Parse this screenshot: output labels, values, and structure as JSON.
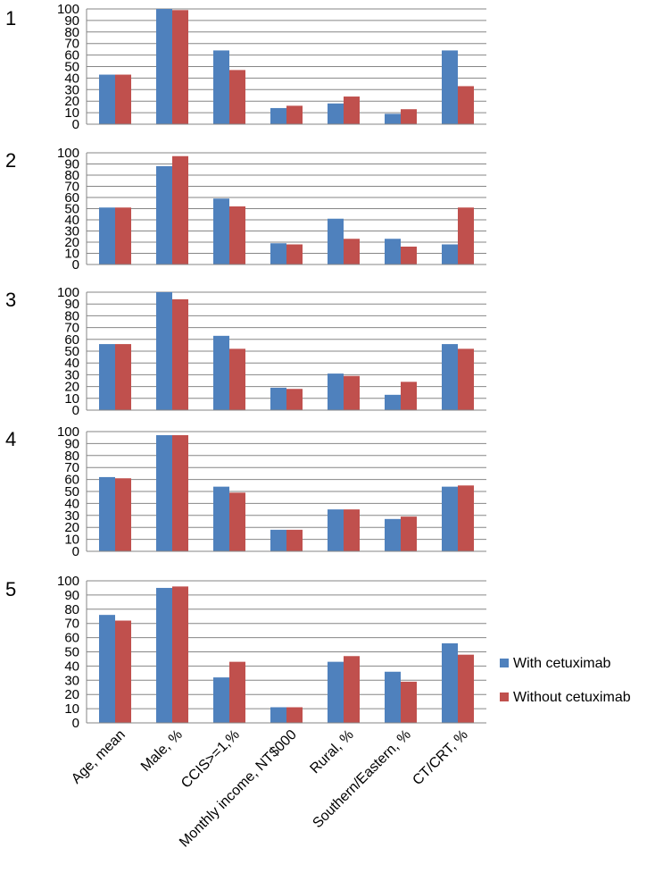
{
  "chart_data": {
    "type": "bar",
    "categories": [
      "Age, mean",
      "Male, %",
      "CCIS>=1,%",
      "Monthly income, NT$000",
      "Rural, %",
      "Southern/Eastern, %",
      "CT/CRT, %"
    ],
    "yticks": [
      0,
      10,
      20,
      30,
      40,
      50,
      60,
      70,
      80,
      90,
      100
    ],
    "ylim": [
      0,
      100
    ],
    "grid": true,
    "colors": {
      "with": "#4f81bd",
      "without": "#c0504d",
      "grid": "#868686"
    },
    "legend": {
      "position": "right",
      "entries": [
        "With cetuximab",
        "Without cetuximab"
      ]
    },
    "panels": [
      {
        "label": "1",
        "series": [
          {
            "name": "With cetuximab",
            "values": [
              43,
              100,
              64,
              14,
              18,
              9,
              64
            ]
          },
          {
            "name": "Without cetuximab",
            "values": [
              43,
              99,
              47,
              16,
              24,
              13,
              33
            ]
          }
        ]
      },
      {
        "label": "2",
        "series": [
          {
            "name": "With cetuximab",
            "values": [
              51,
              88,
              59,
              19,
              41,
              23,
              18
            ]
          },
          {
            "name": "Without cetuximab",
            "values": [
              51,
              97,
              52,
              18,
              23,
              16,
              51
            ]
          }
        ]
      },
      {
        "label": "3",
        "series": [
          {
            "name": "With cetuximab",
            "values": [
              56,
              100,
              63,
              19,
              31,
              13,
              56
            ]
          },
          {
            "name": "Without cetuximab",
            "values": [
              56,
              94,
              52,
              18,
              29,
              24,
              52
            ]
          }
        ]
      },
      {
        "label": "4",
        "series": [
          {
            "name": "With cetuximab",
            "values": [
              62,
              97,
              54,
              18,
              35,
              27,
              54
            ]
          },
          {
            "name": "Without cetuximab",
            "values": [
              61,
              97,
              49,
              18,
              35,
              29,
              55
            ]
          }
        ]
      },
      {
        "label": "5",
        "series": [
          {
            "name": "With cetuximab",
            "values": [
              76,
              95,
              32,
              11,
              43,
              36,
              56
            ]
          },
          {
            "name": "Without cetuximab",
            "values": [
              72,
              96,
              43,
              11,
              47,
              29,
              48
            ]
          }
        ]
      }
    ]
  }
}
